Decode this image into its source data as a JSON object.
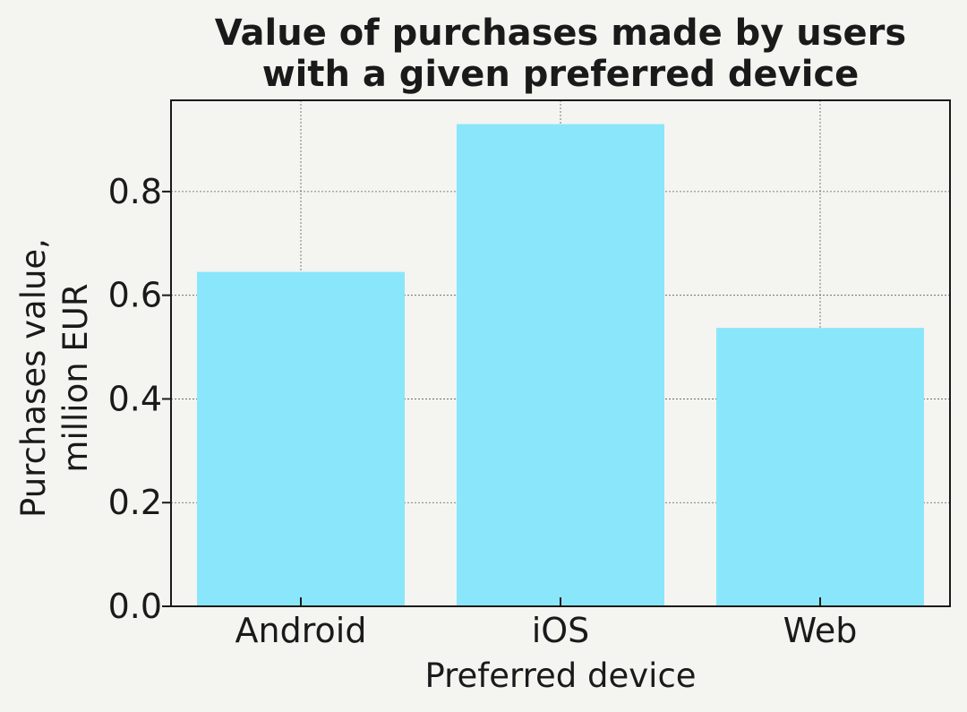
{
  "chart_data": {
    "type": "bar",
    "title_lines": [
      "Value of purchases made by users",
      "with a given preferred device"
    ],
    "xlabel": "Preferred device",
    "ylabel_lines": [
      "Purchases value,",
      "million EUR"
    ],
    "categories": [
      "Android",
      "iOS",
      "Web"
    ],
    "values": [
      0.645,
      0.93,
      0.537
    ],
    "yticks": [
      "0.0",
      "0.2",
      "0.4",
      "0.6",
      "0.8"
    ],
    "ytick_values": [
      0.0,
      0.2,
      0.4,
      0.6,
      0.8
    ],
    "ylim": [
      0,
      0.976
    ],
    "grid": true,
    "bar_color": "#8ae6fa",
    "background_color": "#f4f4f0"
  }
}
